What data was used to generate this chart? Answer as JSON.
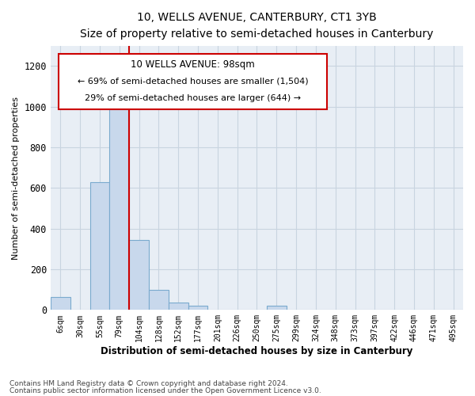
{
  "title1": "10, WELLS AVENUE, CANTERBURY, CT1 3YB",
  "title2": "Size of property relative to semi-detached houses in Canterbury",
  "xlabel": "Distribution of semi-detached houses by size in Canterbury",
  "ylabel": "Number of semi-detached properties",
  "annotation_title": "10 WELLS AVENUE: 98sqm",
  "annotation_line1": "← 69% of semi-detached houses are smaller (1,504)",
  "annotation_line2": "29% of semi-detached houses are larger (644) →",
  "bin_labels": [
    "6sqm",
    "30sqm",
    "55sqm",
    "79sqm",
    "104sqm",
    "128sqm",
    "152sqm",
    "177sqm",
    "201sqm",
    "226sqm",
    "250sqm",
    "275sqm",
    "299sqm",
    "324sqm",
    "348sqm",
    "373sqm",
    "397sqm",
    "422sqm",
    "446sqm",
    "471sqm",
    "495sqm"
  ],
  "bin_values": [
    65,
    0,
    630,
    1000,
    345,
    100,
    35,
    20,
    0,
    0,
    0,
    20,
    0,
    0,
    0,
    0,
    0,
    0,
    0,
    0,
    0
  ],
  "bar_color": "#c8d8ec",
  "bar_edge_color": "#7aaace",
  "vline_color": "#cc0000",
  "vline_x_index": 4,
  "grid_color": "#c8d4e0",
  "bg_color": "#e8eef5",
  "box_color": "#cc0000",
  "ylim": [
    0,
    1300
  ],
  "yticks": [
    0,
    200,
    400,
    600,
    800,
    1000,
    1200
  ],
  "footer1": "Contains HM Land Registry data © Crown copyright and database right 2024.",
  "footer2": "Contains public sector information licensed under the Open Government Licence v3.0."
}
